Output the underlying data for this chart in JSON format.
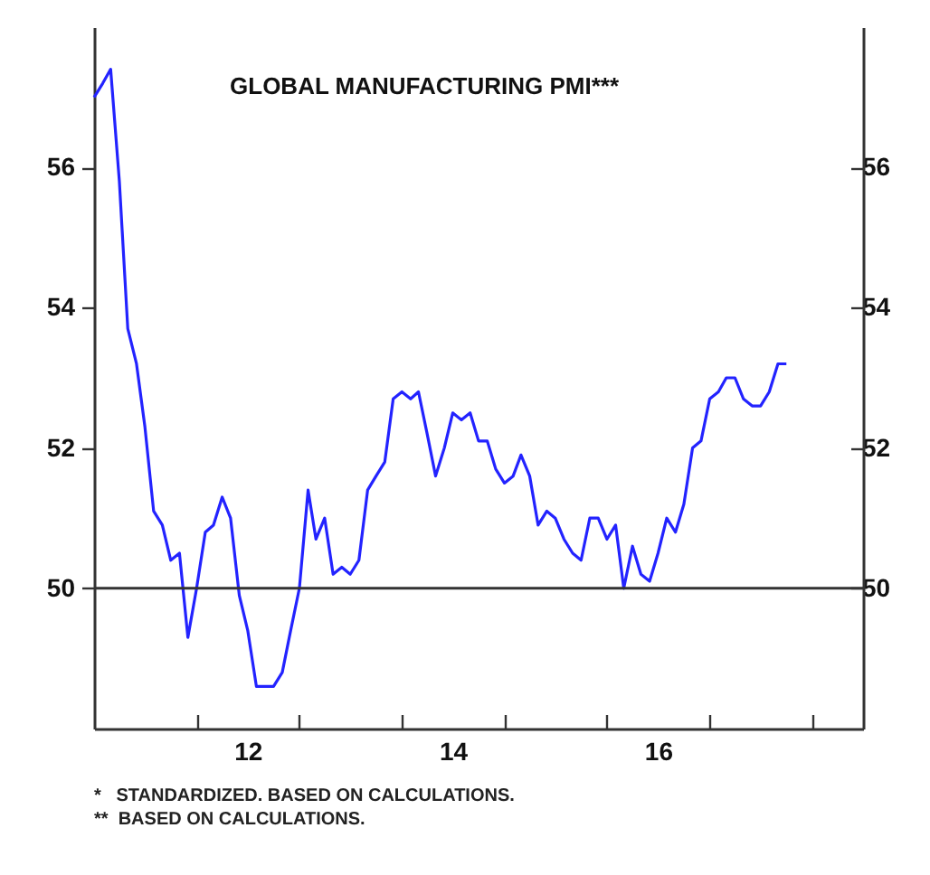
{
  "chart_data": {
    "type": "line",
    "title": "GLOBAL MANUFACTURING PMI***",
    "x": [
      "2011-01",
      "2011-02",
      "2011-03",
      "2011-04",
      "2011-05",
      "2011-06",
      "2011-07",
      "2011-08",
      "2011-09",
      "2011-10",
      "2011-11",
      "2011-12",
      "2012-01",
      "2012-02",
      "2012-03",
      "2012-04",
      "2012-05",
      "2012-06",
      "2012-07",
      "2012-08",
      "2012-09",
      "2012-10",
      "2012-11",
      "2012-12",
      "2013-01",
      "2013-02",
      "2013-03",
      "2013-04",
      "2013-05",
      "2013-06",
      "2013-07",
      "2013-08",
      "2013-09",
      "2013-10",
      "2013-11",
      "2013-12",
      "2014-01",
      "2014-02",
      "2014-03",
      "2014-04",
      "2014-05",
      "2014-06",
      "2014-07",
      "2014-08",
      "2014-09",
      "2014-10",
      "2014-11",
      "2014-12",
      "2015-01",
      "2015-02",
      "2015-03",
      "2015-04",
      "2015-05",
      "2015-06",
      "2015-07",
      "2015-08",
      "2015-09",
      "2015-10",
      "2015-11",
      "2015-12",
      "2016-01",
      "2016-02",
      "2016-03",
      "2016-04",
      "2016-05",
      "2016-06",
      "2016-07",
      "2016-08",
      "2016-09",
      "2016-10",
      "2016-11",
      "2016-12",
      "2017-01",
      "2017-02",
      "2017-03",
      "2017-04",
      "2017-05",
      "2017-06",
      "2017-07",
      "2017-08",
      "2017-09",
      "2017-10"
    ],
    "series": [
      {
        "color": "#2323ff",
        "values": [
          57.0,
          57.2,
          57.4,
          55.8,
          53.7,
          53.2,
          52.3,
          51.1,
          50.9,
          50.4,
          50.5,
          49.3,
          50.0,
          50.8,
          50.9,
          51.3,
          51.0,
          49.9,
          49.4,
          48.6,
          48.6,
          48.6,
          48.8,
          49.4,
          50.0,
          51.4,
          50.7,
          51.0,
          50.2,
          50.3,
          50.2,
          50.4,
          51.4,
          51.6,
          51.8,
          52.7,
          52.8,
          52.7,
          52.8,
          52.2,
          51.6,
          52.0,
          52.5,
          52.4,
          52.5,
          52.1,
          52.1,
          51.7,
          51.5,
          51.6,
          51.9,
          51.6,
          50.9,
          51.1,
          51.0,
          50.7,
          50.5,
          50.4,
          51.0,
          51.0,
          50.7,
          50.9,
          50.0,
          50.6,
          50.2,
          50.1,
          50.5,
          51.0,
          50.8,
          51.2,
          52.0,
          52.1,
          52.7,
          52.8,
          53.0,
          53.0,
          52.7,
          52.6,
          52.6,
          52.8,
          53.2,
          53.2
        ]
      }
    ],
    "xlim": [
      "2011-01",
      "2018-07"
    ],
    "xticks": [
      {
        "value": "2012-01",
        "label": null
      },
      {
        "value": "2012-07",
        "label": "12"
      },
      {
        "value": "2013-01",
        "label": null
      },
      {
        "value": "2014-01",
        "label": null
      },
      {
        "value": "2014-07",
        "label": "14"
      },
      {
        "value": "2015-01",
        "label": null
      },
      {
        "value": "2016-01",
        "label": null
      },
      {
        "value": "2016-07",
        "label": "16"
      },
      {
        "value": "2017-01",
        "label": null
      },
      {
        "value": "2018-01",
        "label": null
      }
    ],
    "ylim": [
      48,
      58
    ],
    "yticks": [
      50,
      52,
      54,
      56
    ],
    "y2lim": [
      48,
      58
    ],
    "y2ticks": [
      50,
      52,
      54,
      56
    ],
    "ref_lines": [
      {
        "axis": "y",
        "value": 50,
        "color": "#333333"
      }
    ],
    "grid": false,
    "annotations": [
      "*   STANDARDIZED. BASED ON CALCULATIONS.",
      "**  BASED ON CALCULATIONS."
    ]
  }
}
